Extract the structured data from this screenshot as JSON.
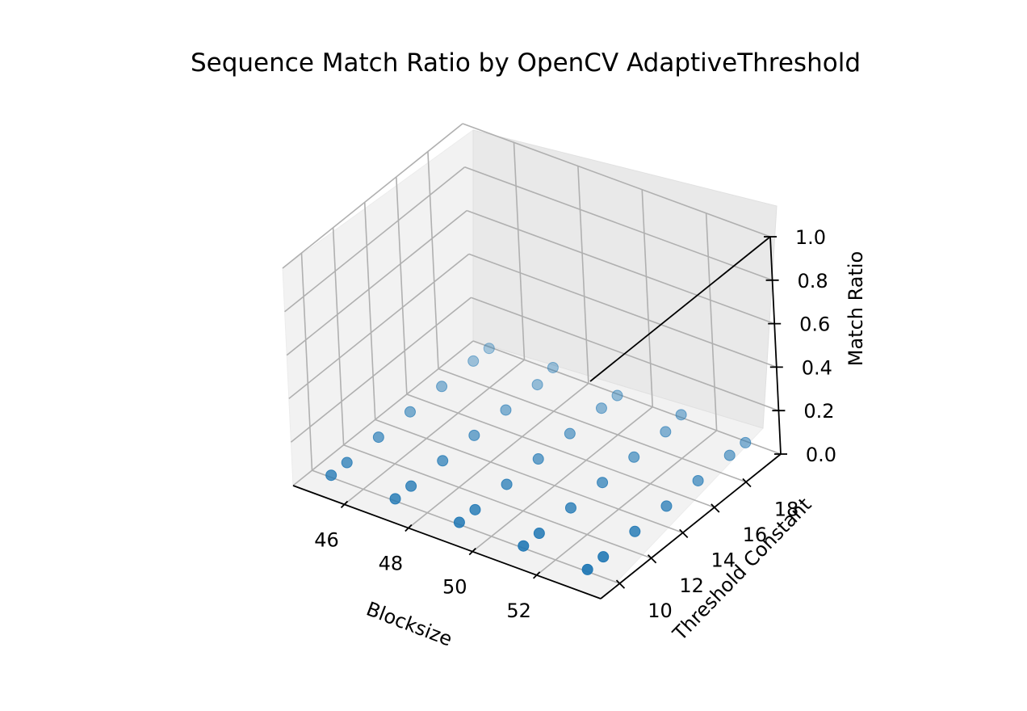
{
  "chart_data": {
    "type": "scatter",
    "title": "Sequence Match Ratio by OpenCV AdaptiveThreshold",
    "xlabel": "Blocksize",
    "ylabel": "Threshold Constant",
    "zlabel": "Match Ratio",
    "x_ticks": [
      "46",
      "48",
      "50",
      "52"
    ],
    "y_ticks": [
      "10",
      "12",
      "14",
      "16",
      "18"
    ],
    "z_ticks": [
      "0.0",
      "0.2",
      "0.4",
      "0.6",
      "0.8",
      "1.0"
    ],
    "z_range": [
      0,
      1
    ],
    "grid": true,
    "marker_color": "#1f77b4",
    "pane_color": "#f2f2f2",
    "series": [
      {
        "points": [
          {
            "blocksize": 45,
            "constant": 10,
            "match_ratio": 0.01
          },
          {
            "blocksize": 45,
            "constant": 11,
            "match_ratio": 0.01
          },
          {
            "blocksize": 45,
            "constant": 13,
            "match_ratio": 0.01
          },
          {
            "blocksize": 45,
            "constant": 15,
            "match_ratio": 0.01
          },
          {
            "blocksize": 45,
            "constant": 17,
            "match_ratio": 0.01
          },
          {
            "blocksize": 45,
            "constant": 19,
            "match_ratio": 0.01
          },
          {
            "blocksize": 45,
            "constant": 20,
            "match_ratio": 0.01
          },
          {
            "blocksize": 47,
            "constant": 10,
            "match_ratio": 0.01
          },
          {
            "blocksize": 47,
            "constant": 11,
            "match_ratio": 0.01
          },
          {
            "blocksize": 47,
            "constant": 13,
            "match_ratio": 0.01
          },
          {
            "blocksize": 47,
            "constant": 15,
            "match_ratio": 0.01
          },
          {
            "blocksize": 47,
            "constant": 17,
            "match_ratio": 0.01
          },
          {
            "blocksize": 47,
            "constant": 19,
            "match_ratio": 0.01
          },
          {
            "blocksize": 47,
            "constant": 20,
            "match_ratio": 0.03
          },
          {
            "blocksize": 49,
            "constant": 10,
            "match_ratio": 0.01
          },
          {
            "blocksize": 49,
            "constant": 11,
            "match_ratio": 0.01
          },
          {
            "blocksize": 49,
            "constant": 13,
            "match_ratio": 0.01
          },
          {
            "blocksize": 49,
            "constant": 15,
            "match_ratio": 0.01
          },
          {
            "blocksize": 49,
            "constant": 17,
            "match_ratio": 0.01
          },
          {
            "blocksize": 49,
            "constant": 19,
            "match_ratio": 0.01
          },
          {
            "blocksize": 49,
            "constant": 20,
            "match_ratio": 0.01
          },
          {
            "blocksize": 51,
            "constant": 10,
            "match_ratio": 0.01
          },
          {
            "blocksize": 51,
            "constant": 11,
            "match_ratio": 0.01
          },
          {
            "blocksize": 51,
            "constant": 13,
            "match_ratio": 0.01
          },
          {
            "blocksize": 51,
            "constant": 15,
            "match_ratio": 0.01
          },
          {
            "blocksize": 51,
            "constant": 17,
            "match_ratio": 0.01
          },
          {
            "blocksize": 51,
            "constant": 19,
            "match_ratio": 0.01
          },
          {
            "blocksize": 51,
            "constant": 20,
            "match_ratio": 0.03
          },
          {
            "blocksize": 53,
            "constant": 10,
            "match_ratio": 0.01
          },
          {
            "blocksize": 53,
            "constant": 11,
            "match_ratio": 0.01
          },
          {
            "blocksize": 53,
            "constant": 13,
            "match_ratio": 0.01
          },
          {
            "blocksize": 53,
            "constant": 15,
            "match_ratio": 0.01
          },
          {
            "blocksize": 53,
            "constant": 17,
            "match_ratio": 0.01
          },
          {
            "blocksize": 53,
            "constant": 19,
            "match_ratio": 0.01
          },
          {
            "blocksize": 53,
            "constant": 20,
            "match_ratio": 0.01
          }
        ]
      }
    ]
  }
}
